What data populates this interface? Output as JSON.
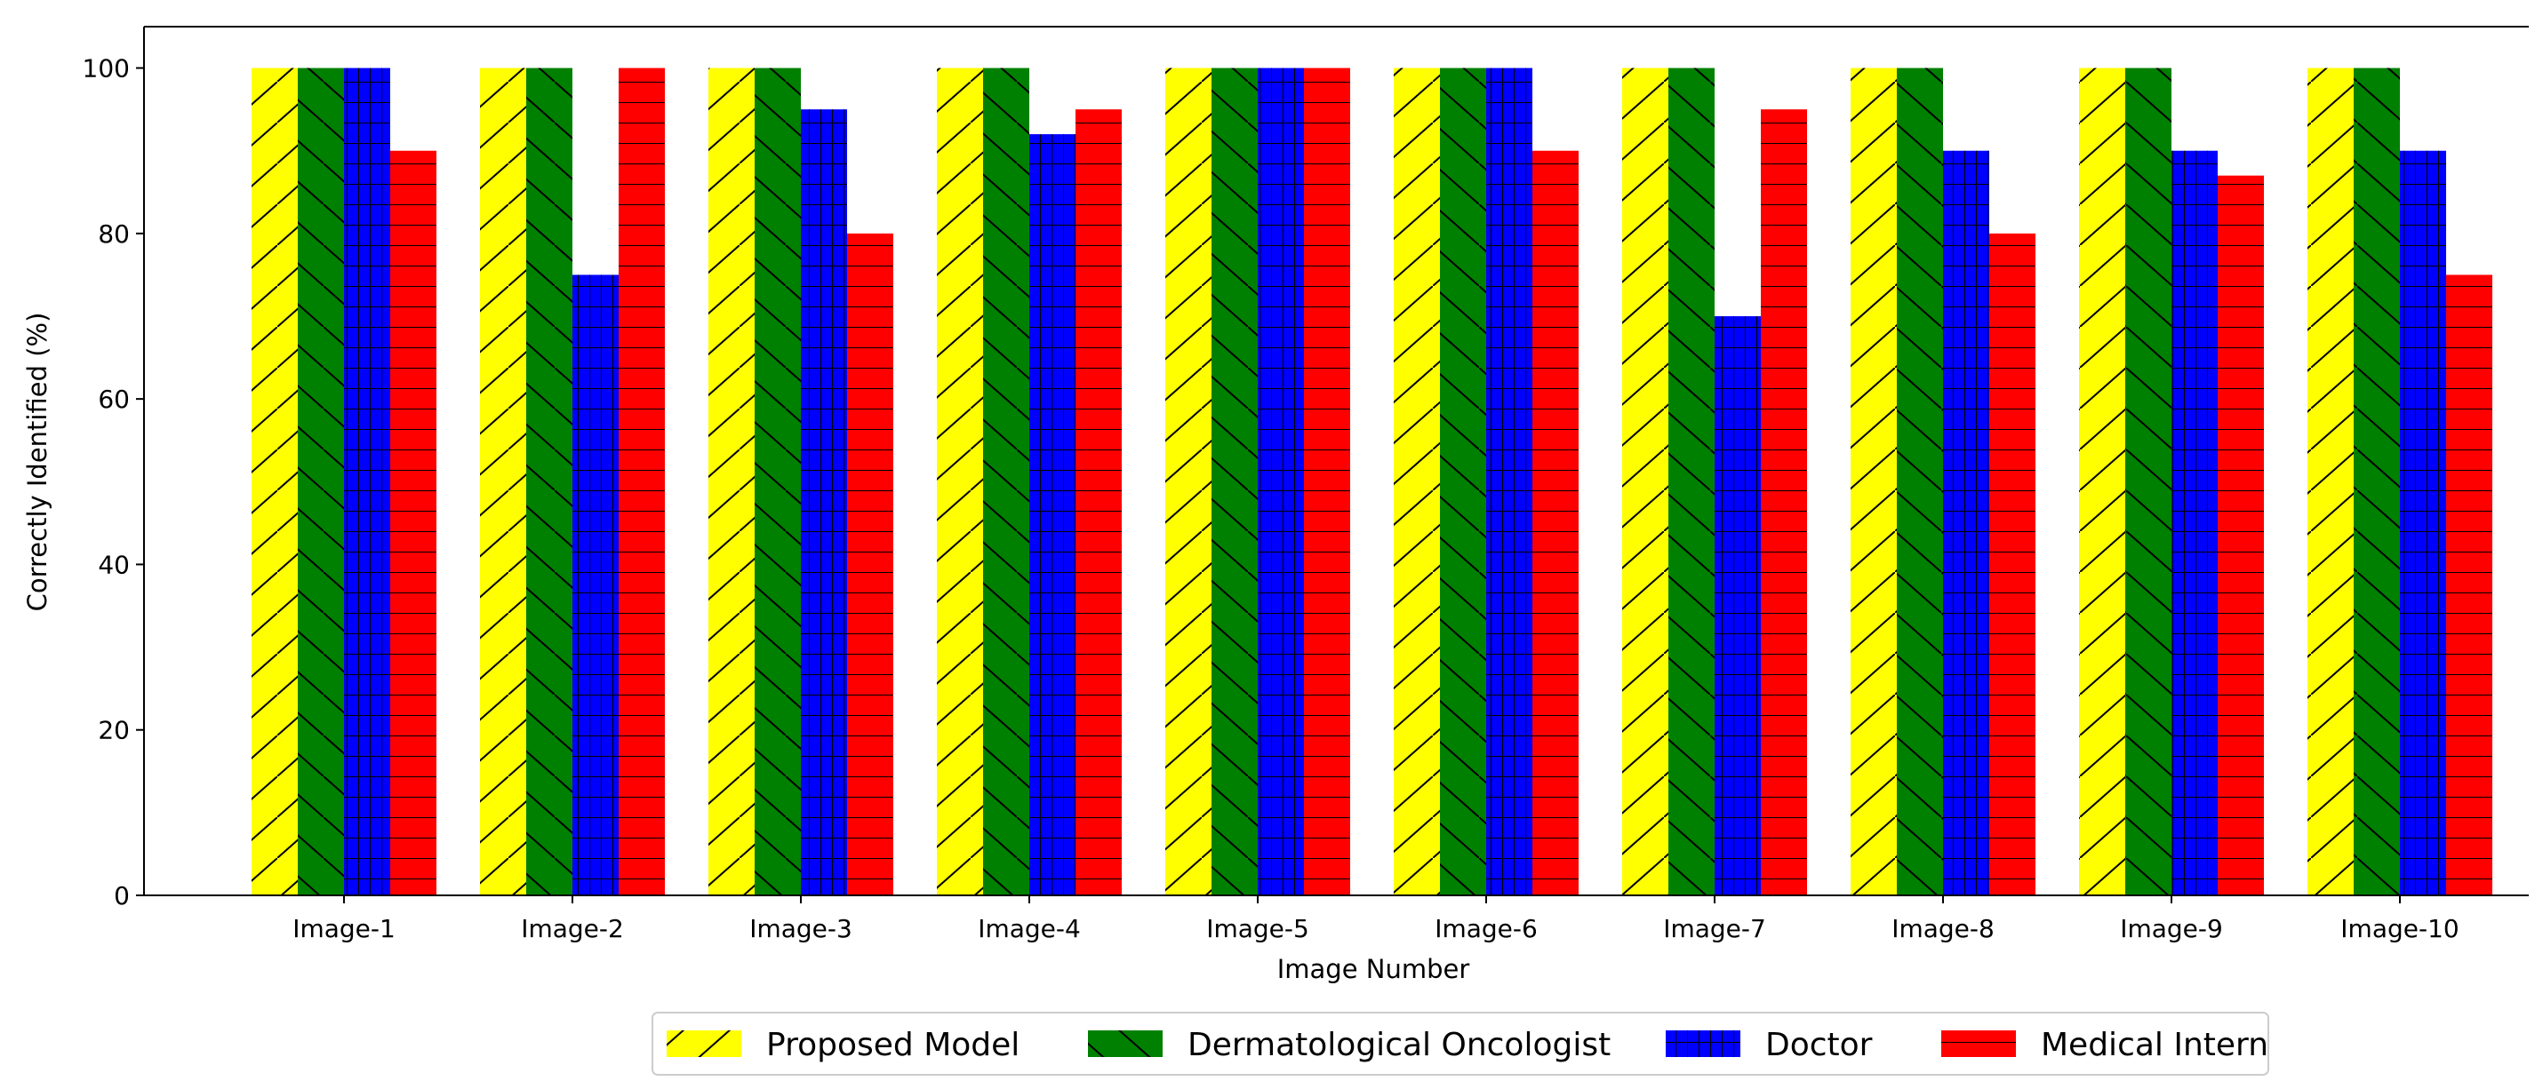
{
  "chart_data": {
    "type": "bar",
    "title": "",
    "xlabel": "Image Number",
    "ylabel": "Correctly Identified (%)",
    "ylim": [
      0,
      105
    ],
    "yticks": [
      0,
      20,
      40,
      60,
      80,
      100
    ],
    "categories": [
      "Image-1",
      "Image-2",
      "Image-3",
      "Image-4",
      "Image-5",
      "Image-6",
      "Image-7",
      "Image-8",
      "Image-9",
      "Image-10"
    ],
    "series": [
      {
        "name": "Proposed Model",
        "color": "#ffff00",
        "hatch": "forward-diagonal",
        "values": [
          100,
          100,
          100,
          100,
          100,
          100,
          100,
          100,
          100,
          100
        ]
      },
      {
        "name": "Dermatological Oncologist",
        "color": "#008000",
        "hatch": "back-diagonal",
        "values": [
          100,
          100,
          100,
          100,
          100,
          100,
          100,
          100,
          100,
          100
        ]
      },
      {
        "name": "Doctor",
        "color": "#0000ff",
        "hatch": "grid",
        "values": [
          100,
          75,
          95,
          92,
          100,
          100,
          70,
          90,
          90,
          90
        ]
      },
      {
        "name": "Medical Intern",
        "color": "#ff0000",
        "hatch": "horizontal",
        "values": [
          90,
          100,
          80,
          95,
          100,
          90,
          95,
          80,
          87,
          75
        ]
      }
    ],
    "grid": false,
    "legend_position": "bottom-center"
  }
}
